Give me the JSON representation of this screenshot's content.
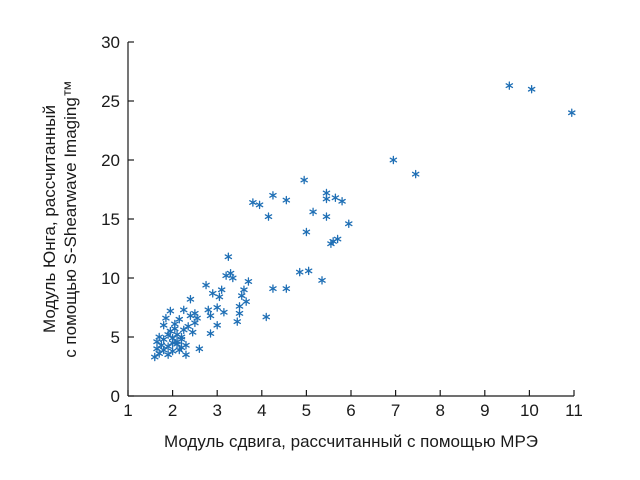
{
  "chart_data": {
    "type": "scatter",
    "title": "",
    "xlabel": "Модуль сдвига, рассчитанный с помощью МРЭ",
    "ylabel_lines": [
      "Модуль Юнга, рассчитанный",
      "с помощью S-Shearwave Imaging™"
    ],
    "xlim": [
      1,
      11
    ],
    "ylim": [
      0,
      30
    ],
    "xticks": [
      "1",
      "2",
      "3",
      "4",
      "5",
      "6",
      "7",
      "8",
      "9",
      "10",
      "11"
    ],
    "yticks": [
      "0",
      "5",
      "10",
      "15",
      "20",
      "25",
      "30"
    ],
    "grid": false,
    "legend": "none",
    "marker": "*",
    "marker_color": "#1f6fb5",
    "series": [
      {
        "points": [
          [
            1.6,
            3.3
          ],
          [
            1.65,
            4.0
          ],
          [
            1.65,
            4.6
          ],
          [
            1.7,
            3.6
          ],
          [
            1.7,
            5.0
          ],
          [
            1.75,
            4.3
          ],
          [
            1.8,
            3.9
          ],
          [
            1.8,
            4.8
          ],
          [
            1.8,
            6.0
          ],
          [
            1.85,
            6.6
          ],
          [
            1.9,
            4.2
          ],
          [
            1.9,
            5.2
          ],
          [
            1.9,
            3.5
          ],
          [
            1.95,
            5.5
          ],
          [
            1.95,
            7.2
          ],
          [
            2.0,
            4.5
          ],
          [
            2.0,
            4.9
          ],
          [
            2.0,
            3.8
          ],
          [
            2.05,
            6.1
          ],
          [
            2.05,
            5.7
          ],
          [
            2.1,
            4.4
          ],
          [
            2.1,
            4.6
          ],
          [
            2.1,
            5.2
          ],
          [
            2.15,
            3.9
          ],
          [
            2.15,
            6.5
          ],
          [
            2.2,
            4.8
          ],
          [
            2.2,
            5.0
          ],
          [
            2.2,
            4.1
          ],
          [
            2.25,
            5.6
          ],
          [
            2.25,
            7.3
          ],
          [
            2.3,
            4.3
          ],
          [
            2.3,
            3.5
          ],
          [
            2.35,
            5.9
          ],
          [
            2.4,
            6.8
          ],
          [
            2.4,
            8.2
          ],
          [
            2.45,
            5.4
          ],
          [
            2.5,
            7.0
          ],
          [
            2.5,
            6.2
          ],
          [
            2.55,
            6.6
          ],
          [
            2.6,
            4.0
          ],
          [
            2.75,
            9.4
          ],
          [
            2.8,
            7.3
          ],
          [
            2.85,
            6.8
          ],
          [
            2.85,
            5.3
          ],
          [
            2.9,
            8.7
          ],
          [
            3.0,
            6.0
          ],
          [
            3.0,
            7.5
          ],
          [
            3.05,
            8.4
          ],
          [
            3.1,
            9.0
          ],
          [
            3.15,
            7.1
          ],
          [
            3.2,
            10.2
          ],
          [
            3.25,
            11.8
          ],
          [
            3.3,
            10.4
          ],
          [
            3.35,
            10.0
          ],
          [
            3.45,
            6.3
          ],
          [
            3.5,
            7.0
          ],
          [
            3.5,
            7.6
          ],
          [
            3.55,
            8.5
          ],
          [
            3.6,
            9.0
          ],
          [
            3.65,
            8.0
          ],
          [
            3.7,
            9.7
          ],
          [
            3.8,
            16.4
          ],
          [
            3.95,
            16.2
          ],
          [
            4.1,
            6.7
          ],
          [
            4.15,
            15.2
          ],
          [
            4.25,
            17.0
          ],
          [
            4.25,
            9.1
          ],
          [
            4.55,
            9.1
          ],
          [
            4.55,
            16.6
          ],
          [
            4.85,
            10.5
          ],
          [
            4.95,
            18.3
          ],
          [
            5.0,
            13.9
          ],
          [
            5.05,
            10.6
          ],
          [
            5.15,
            15.6
          ],
          [
            5.35,
            9.8
          ],
          [
            5.45,
            15.2
          ],
          [
            5.45,
            16.7
          ],
          [
            5.45,
            17.2
          ],
          [
            5.55,
            12.9
          ],
          [
            5.6,
            13.1
          ],
          [
            5.65,
            16.8
          ],
          [
            5.7,
            13.3
          ],
          [
            5.8,
            16.5
          ],
          [
            5.95,
            14.6
          ],
          [
            6.95,
            20.0
          ],
          [
            7.45,
            18.8
          ],
          [
            9.55,
            26.3
          ],
          [
            10.05,
            26.0
          ],
          [
            10.95,
            24.0
          ]
        ]
      }
    ]
  }
}
